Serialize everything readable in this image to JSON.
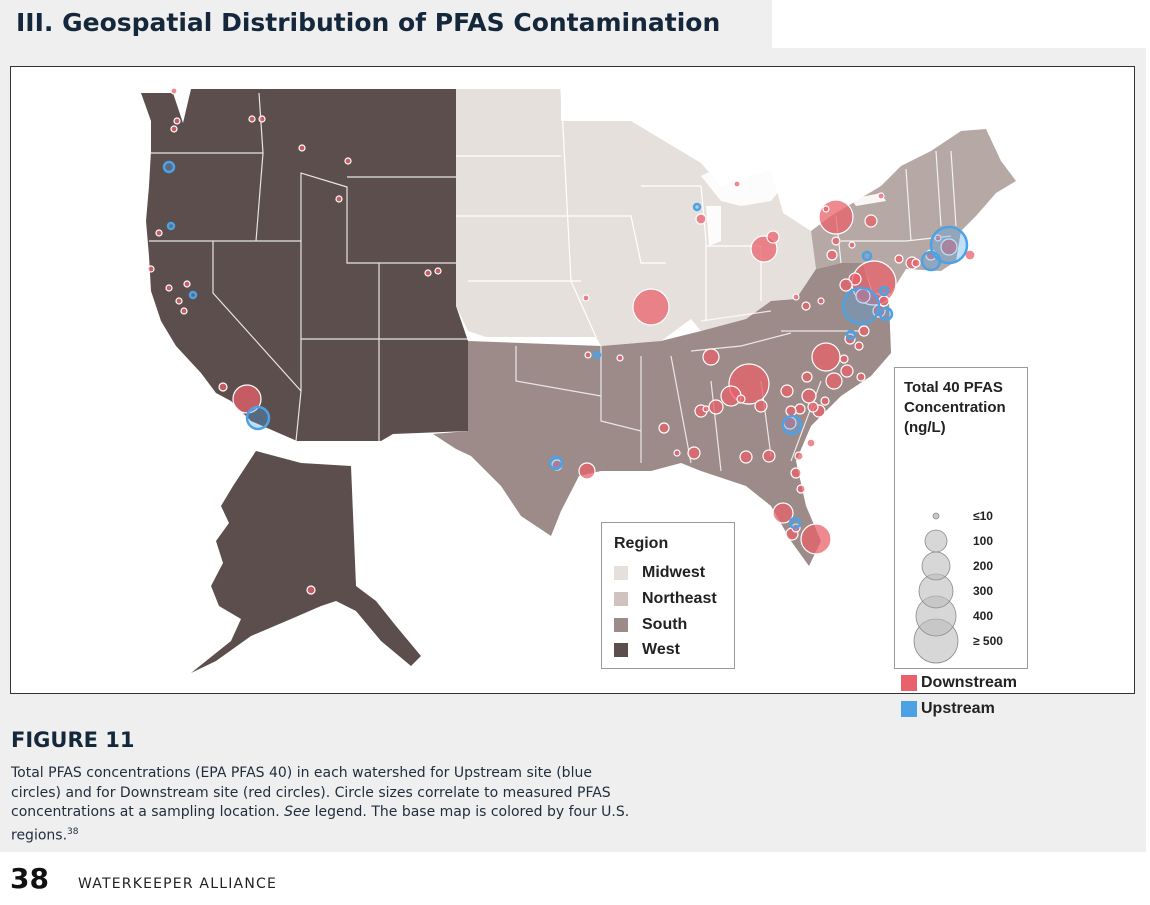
{
  "section": {
    "title": "III. Geospatial Distribution of PFAS Contamination"
  },
  "legend_region": {
    "title": "Region",
    "items": [
      {
        "label": "Midwest",
        "color": "#e6e0dd"
      },
      {
        "label": "Northeast",
        "color": "#cfc2bf"
      },
      {
        "label": "South",
        "color": "#9c8b88"
      },
      {
        "label": "West",
        "color": "#5b4e4d"
      }
    ]
  },
  "legend_concentration": {
    "title_line1": "Total 40 PFAS",
    "title_line2": "Concentration",
    "title_line3": "(ng/L)",
    "sizes": [
      "≤10",
      "100",
      "200",
      "300",
      "400",
      "≥ 500"
    ],
    "downstream_label": "Downstream",
    "downstream_color": "#e8616b",
    "upstream_label": "Upstream",
    "upstream_color": "#4da2e6"
  },
  "figure": {
    "label": "FIGURE 11",
    "caption_part1": "Total PFAS concentrations (EPA PFAS 40) in each watershed for Upstream site (blue circles) and for Downstream site (red circles). Circle sizes correlate to measured PFAS concentrations at a sampling location. ",
    "caption_see": "See",
    "caption_part2": " legend. The base map is colored by four U.S. regions.",
    "caption_ref": "38"
  },
  "footer": {
    "page_number": "38",
    "publisher": "WATERKEEPER ALLIANCE"
  },
  "map_data": {
    "downstream_points": [
      [
        650,
        306,
        18
      ],
      [
        835,
        216,
        17
      ],
      [
        873,
        282,
        22
      ],
      [
        748,
        383,
        20
      ],
      [
        825,
        356,
        14
      ],
      [
        246,
        398,
        14
      ],
      [
        763,
        248,
        13
      ],
      [
        815,
        538,
        15
      ],
      [
        710,
        356,
        8
      ],
      [
        730,
        395,
        10
      ],
      [
        833,
        380,
        8
      ],
      [
        808,
        395,
        7
      ],
      [
        786,
        390,
        6
      ],
      [
        760,
        405,
        6
      ],
      [
        715,
        406,
        7
      ],
      [
        700,
        410,
        6
      ],
      [
        693,
        452,
        6
      ],
      [
        745,
        456,
        6
      ],
      [
        768,
        455,
        6
      ],
      [
        795,
        472,
        5
      ],
      [
        782,
        512,
        10
      ],
      [
        791,
        533,
        6
      ],
      [
        586,
        470,
        8
      ],
      [
        556,
        464,
        5
      ],
      [
        663,
        427,
        5
      ],
      [
        789,
        422,
        6
      ],
      [
        818,
        410,
        6
      ],
      [
        911,
        262,
        6
      ],
      [
        930,
        254,
        5
      ],
      [
        948,
        246,
        8
      ],
      [
        969,
        254,
        5
      ],
      [
        854,
        278,
        6
      ],
      [
        862,
        295,
        7
      ],
      [
        878,
        310,
        6
      ],
      [
        883,
        300,
        5
      ],
      [
        863,
        330,
        5
      ],
      [
        849,
        338,
        5
      ],
      [
        870,
        220,
        6
      ],
      [
        772,
        236,
        6
      ],
      [
        700,
        218,
        5
      ],
      [
        736,
        183,
        3
      ],
      [
        585,
        297,
        3
      ],
      [
        587,
        354,
        3
      ],
      [
        619,
        357,
        3
      ],
      [
        860,
        376,
        4
      ],
      [
        843,
        358,
        4
      ],
      [
        806,
        376,
        5
      ],
      [
        846,
        370,
        6
      ],
      [
        812,
        406,
        5
      ],
      [
        799,
        408,
        5
      ],
      [
        310,
        589,
        4
      ],
      [
        222,
        386,
        4
      ],
      [
        178,
        300,
        3
      ],
      [
        168,
        287,
        3
      ],
      [
        186,
        283,
        3
      ],
      [
        150,
        268,
        3
      ],
      [
        158,
        232,
        3
      ],
      [
        173,
        128,
        3
      ],
      [
        176,
        120,
        3
      ],
      [
        173,
        90,
        3
      ],
      [
        251,
        118,
        3
      ],
      [
        261,
        118,
        3
      ],
      [
        301,
        147,
        3
      ],
      [
        347,
        160,
        3
      ],
      [
        338,
        198,
        3
      ],
      [
        427,
        272,
        3
      ],
      [
        437,
        270,
        3
      ],
      [
        183,
        310,
        3
      ],
      [
        831,
        254,
        5
      ],
      [
        845,
        284,
        6
      ],
      [
        898,
        258,
        4
      ],
      [
        915,
        262,
        4
      ],
      [
        825,
        208,
        3
      ],
      [
        835,
        240,
        4
      ],
      [
        851,
        244,
        3
      ],
      [
        805,
        305,
        4
      ],
      [
        795,
        296,
        3
      ],
      [
        740,
        398,
        4
      ],
      [
        705,
        408,
        3
      ],
      [
        676,
        452,
        3
      ],
      [
        810,
        442,
        4
      ],
      [
        820,
        300,
        3
      ],
      [
        858,
        345,
        4
      ],
      [
        880,
        195,
        3
      ],
      [
        937,
        237,
        3
      ],
      [
        798,
        455,
        4
      ],
      [
        800,
        488,
        4
      ],
      [
        795,
        527,
        4
      ],
      [
        790,
        410,
        5
      ],
      [
        824,
        400,
        4
      ]
    ],
    "upstream_points": [
      [
        860,
        305,
        18
      ],
      [
        948,
        244,
        18
      ],
      [
        930,
        260,
        9
      ],
      [
        257,
        417,
        11
      ],
      [
        168,
        166,
        5
      ],
      [
        555,
        462,
        6
      ],
      [
        791,
        424,
        9
      ],
      [
        794,
        522,
        5
      ],
      [
        885,
        313,
        6
      ],
      [
        696,
        206,
        3
      ],
      [
        170,
        225,
        3
      ],
      [
        192,
        294,
        3
      ],
      [
        596,
        354,
        3
      ],
      [
        866,
        255,
        4
      ],
      [
        883,
        290,
        4
      ],
      [
        850,
        334,
        4
      ]
    ]
  }
}
